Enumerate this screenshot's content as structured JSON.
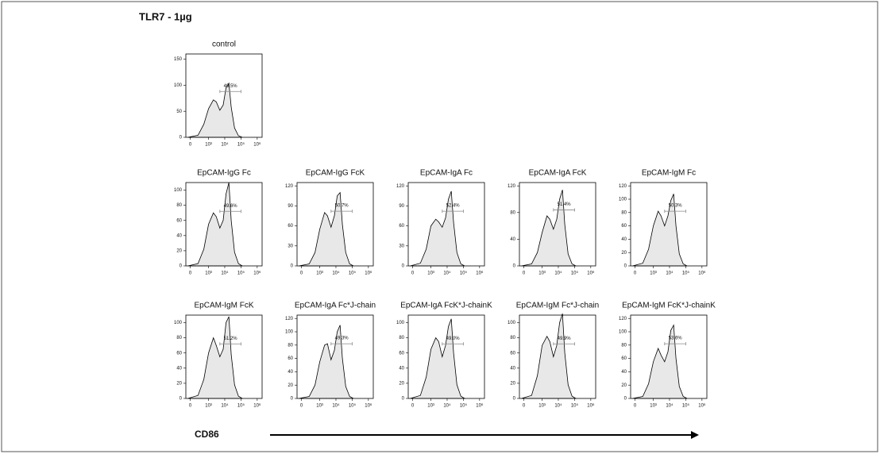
{
  "figure": {
    "title": "TLR7 - 1µg",
    "x_axis_label": "CD86"
  },
  "chart_data": [
    {
      "type": "area",
      "title": "control",
      "color": "#e8e8e8",
      "x": [
        -50,
        200,
        500,
        1000,
        2000,
        3000,
        5000,
        8000,
        12000,
        18000,
        25000,
        40000,
        70000,
        120000
      ],
      "values": [
        0,
        4,
        25,
        55,
        72,
        68,
        52,
        62,
        95,
        104,
        58,
        18,
        3,
        0
      ],
      "xscale": "arcsinh",
      "xlim": [
        -100,
        2000000
      ],
      "xticks": [
        0,
        {
          "value": 1000,
          "label": "10³"
        },
        {
          "value": 10000,
          "label": "10⁴"
        },
        {
          "value": 100000,
          "label": "10⁵"
        },
        {
          "value": 1000000,
          "label": "10⁶"
        }
      ],
      "ylim": [
        0,
        160
      ],
      "yticks": [
        0,
        50,
        100,
        150
      ],
      "gate": {
        "value": 49.5,
        "value_label": "49.5%",
        "range": [
          5000,
          100000
        ],
        "level": 88
      }
    },
    {
      "type": "area",
      "title": "EpCAM-IgG Fc",
      "color": "#e8e8e8",
      "x": [
        -50,
        200,
        500,
        1000,
        2000,
        3000,
        5000,
        8000,
        12000,
        18000,
        25000,
        40000,
        70000,
        120000
      ],
      "values": [
        0,
        3,
        22,
        55,
        70,
        65,
        50,
        60,
        95,
        110,
        60,
        18,
        3,
        0
      ],
      "xscale": "arcsinh",
      "xlim": [
        -100,
        2000000
      ],
      "xticks": [
        0,
        {
          "value": 1000,
          "label": "10³"
        },
        {
          "value": 10000,
          "label": "10⁴"
        },
        {
          "value": 100000,
          "label": "10⁵"
        },
        {
          "value": 1000000,
          "label": "10⁶"
        }
      ],
      "ylim": [
        0,
        110
      ],
      "yticks": [
        0,
        20,
        40,
        60,
        80,
        100
      ],
      "gate": {
        "value": 49.6,
        "value_label": "49.6%",
        "range": [
          5000,
          100000
        ],
        "level": 72
      }
    },
    {
      "type": "area",
      "title": "EpCAM-IgG FcK",
      "color": "#e8e8e8",
      "x": [
        -50,
        200,
        500,
        1000,
        2000,
        3000,
        5000,
        8000,
        12000,
        18000,
        25000,
        40000,
        70000,
        120000
      ],
      "values": [
        0,
        3,
        20,
        55,
        80,
        75,
        58,
        75,
        105,
        110,
        62,
        20,
        3,
        0
      ],
      "xscale": "arcsinh",
      "xlim": [
        -100,
        2000000
      ],
      "xticks": [
        0,
        {
          "value": 1000,
          "label": "10³"
        },
        {
          "value": 10000,
          "label": "10⁴"
        },
        {
          "value": 100000,
          "label": "10⁵"
        },
        {
          "value": 1000000,
          "label": "10⁶"
        }
      ],
      "ylim": [
        0,
        125
      ],
      "yticks": [
        0,
        30,
        60,
        90,
        120
      ],
      "gate": {
        "value": 50.7,
        "value_label": "50.7%",
        "range": [
          5000,
          100000
        ],
        "level": 82
      }
    },
    {
      "type": "area",
      "title": "EpCAM-IgA Fc",
      "color": "#e8e8e8",
      "x": [
        -50,
        200,
        500,
        1000,
        2000,
        3000,
        5000,
        8000,
        12000,
        18000,
        25000,
        40000,
        70000,
        120000
      ],
      "values": [
        0,
        4,
        25,
        60,
        70,
        66,
        58,
        72,
        100,
        112,
        65,
        20,
        3,
        0
      ],
      "xscale": "arcsinh",
      "xlim": [
        -100,
        2000000
      ],
      "xticks": [
        0,
        {
          "value": 1000,
          "label": "10³"
        },
        {
          "value": 10000,
          "label": "10⁴"
        },
        {
          "value": 100000,
          "label": "10⁵"
        },
        {
          "value": 1000000,
          "label": "10⁶"
        }
      ],
      "ylim": [
        0,
        125
      ],
      "yticks": [
        0,
        30,
        60,
        90,
        120
      ],
      "gate": {
        "value": 52.4,
        "value_label": "52.4%",
        "range": [
          5000,
          100000
        ],
        "level": 82
      }
    },
    {
      "type": "area",
      "title": "EpCAM-IgA FcK",
      "color": "#e8e8e8",
      "x": [
        -50,
        200,
        500,
        1000,
        2000,
        3000,
        5000,
        8000,
        12000,
        18000,
        25000,
        40000,
        70000,
        120000
      ],
      "values": [
        0,
        3,
        20,
        50,
        75,
        70,
        55,
        70,
        100,
        114,
        62,
        18,
        3,
        0
      ],
      "xscale": "arcsinh",
      "xlim": [
        -100,
        2000000
      ],
      "xticks": [
        0,
        {
          "value": 1000,
          "label": "10³"
        },
        {
          "value": 10000,
          "label": "10⁴"
        },
        {
          "value": 100000,
          "label": "10⁵"
        },
        {
          "value": 1000000,
          "label": "10⁶"
        }
      ],
      "ylim": [
        0,
        125
      ],
      "yticks": [
        0,
        40,
        80,
        120
      ],
      "gate": {
        "value": 51.4,
        "value_label": "51.4%",
        "range": [
          5000,
          100000
        ],
        "level": 84
      }
    },
    {
      "type": "area",
      "title": "EpCAM-IgM Fc",
      "color": "#e8e8e8",
      "x": [
        -50,
        200,
        500,
        1000,
        2000,
        3000,
        5000,
        8000,
        12000,
        18000,
        25000,
        40000,
        70000,
        120000
      ],
      "values": [
        0,
        4,
        25,
        60,
        82,
        75,
        60,
        75,
        98,
        108,
        60,
        18,
        3,
        0
      ],
      "xscale": "arcsinh",
      "xlim": [
        -100,
        2000000
      ],
      "xticks": [
        0,
        {
          "value": 1000,
          "label": "10³"
        },
        {
          "value": 10000,
          "label": "10⁴"
        },
        {
          "value": 100000,
          "label": "10⁵"
        },
        {
          "value": 1000000,
          "label": "10⁶"
        }
      ],
      "ylim": [
        0,
        125
      ],
      "yticks": [
        0,
        20,
        40,
        60,
        80,
        100,
        120
      ],
      "gate": {
        "value": 50.3,
        "value_label": "50.3%",
        "range": [
          5000,
          100000
        ],
        "level": 82
      }
    },
    {
      "type": "area",
      "title": "EpCAM-IgM FcK",
      "color": "#e8e8e8",
      "x": [
        -50,
        200,
        500,
        1000,
        2000,
        3000,
        5000,
        8000,
        12000,
        18000,
        25000,
        40000,
        70000,
        120000
      ],
      "values": [
        0,
        4,
        25,
        60,
        80,
        70,
        55,
        65,
        100,
        108,
        58,
        18,
        3,
        0
      ],
      "xscale": "arcsinh",
      "xlim": [
        -100,
        2000000
      ],
      "xticks": [
        0,
        {
          "value": 1000,
          "label": "10³"
        },
        {
          "value": 10000,
          "label": "10⁴"
        },
        {
          "value": 100000,
          "label": "10⁵"
        },
        {
          "value": 1000000,
          "label": "10⁶"
        }
      ],
      "ylim": [
        0,
        110
      ],
      "yticks": [
        0,
        20,
        40,
        60,
        80,
        100
      ],
      "gate": {
        "value": 51.2,
        "value_label": "51.2%",
        "range": [
          5000,
          100000
        ],
        "level": 72
      }
    },
    {
      "type": "area",
      "title": "EpCAM-IgA Fc*J-chain",
      "color": "#e8e8e8",
      "x": [
        -50,
        200,
        500,
        1000,
        2000,
        3000,
        5000,
        8000,
        12000,
        18000,
        25000,
        40000,
        70000,
        120000
      ],
      "values": [
        0,
        3,
        20,
        55,
        80,
        82,
        58,
        72,
        100,
        110,
        60,
        18,
        3,
        0
      ],
      "xscale": "arcsinh",
      "xlim": [
        -100,
        2000000
      ],
      "xticks": [
        0,
        {
          "value": 1000,
          "label": "10³"
        },
        {
          "value": 10000,
          "label": "10⁴"
        },
        {
          "value": 100000,
          "label": "10⁵"
        },
        {
          "value": 1000000,
          "label": "10⁶"
        }
      ],
      "ylim": [
        0,
        125
      ],
      "yticks": [
        0,
        20,
        40,
        60,
        80,
        100,
        120
      ],
      "gate": {
        "value": 49.3,
        "value_label": "49.3%",
        "range": [
          5000,
          100000
        ],
        "level": 82
      }
    },
    {
      "type": "area",
      "title": "EpCAM-IgA FcK*J-chainK",
      "color": "#e8e8e8",
      "x": [
        -50,
        200,
        500,
        1000,
        2000,
        3000,
        5000,
        8000,
        12000,
        18000,
        25000,
        40000,
        70000,
        120000
      ],
      "values": [
        0,
        4,
        28,
        65,
        80,
        75,
        55,
        70,
        95,
        105,
        60,
        18,
        3,
        0
      ],
      "xscale": "arcsinh",
      "xlim": [
        -100,
        2000000
      ],
      "xticks": [
        0,
        {
          "value": 1000,
          "label": "10³"
        },
        {
          "value": 10000,
          "label": "10⁴"
        },
        {
          "value": 100000,
          "label": "10⁵"
        },
        {
          "value": 1000000,
          "label": "10⁶"
        }
      ],
      "ylim": [
        0,
        110
      ],
      "yticks": [
        0,
        20,
        40,
        60,
        80,
        100
      ],
      "gate": {
        "value": 49.0,
        "value_label": "49.0%",
        "range": [
          5000,
          100000
        ],
        "level": 72
      }
    },
    {
      "type": "area",
      "title": "EpCAM-IgM Fc*J-chain",
      "color": "#e8e8e8",
      "x": [
        -50,
        200,
        500,
        1000,
        2000,
        3000,
        5000,
        8000,
        12000,
        18000,
        25000,
        40000,
        70000,
        120000
      ],
      "values": [
        0,
        4,
        30,
        70,
        82,
        75,
        55,
        70,
        100,
        112,
        60,
        18,
        3,
        0
      ],
      "xscale": "arcsinh",
      "xlim": [
        -100,
        2000000
      ],
      "xticks": [
        0,
        {
          "value": 1000,
          "label": "10³"
        },
        {
          "value": 10000,
          "label": "10⁴"
        },
        {
          "value": 100000,
          "label": "10⁵"
        },
        {
          "value": 1000000,
          "label": "10⁶"
        }
      ],
      "ylim": [
        0,
        110
      ],
      "yticks": [
        0,
        20,
        40,
        60,
        80,
        100
      ],
      "gate": {
        "value": 49.9,
        "value_label": "49.9%",
        "range": [
          5000,
          100000
        ],
        "level": 72
      }
    },
    {
      "type": "area",
      "title": "EpCAM-IgM FcK*J-chainK",
      "color": "#e8e8e8",
      "x": [
        -50,
        200,
        500,
        1000,
        2000,
        3000,
        5000,
        8000,
        12000,
        18000,
        25000,
        40000,
        70000,
        120000
      ],
      "values": [
        0,
        3,
        22,
        55,
        75,
        65,
        55,
        70,
        102,
        110,
        60,
        18,
        3,
        0
      ],
      "xscale": "arcsinh",
      "xlim": [
        -100,
        2000000
      ],
      "xticks": [
        0,
        {
          "value": 1000,
          "label": "10³"
        },
        {
          "value": 10000,
          "label": "10⁴"
        },
        {
          "value": 100000,
          "label": "10⁵"
        },
        {
          "value": 1000000,
          "label": "10⁶"
        }
      ],
      "ylim": [
        0,
        125
      ],
      "yticks": [
        0,
        20,
        40,
        60,
        80,
        100,
        120
      ],
      "gate": {
        "value": 53.6,
        "value_label": "53.6%",
        "range": [
          5000,
          100000
        ],
        "level": 82
      }
    }
  ]
}
